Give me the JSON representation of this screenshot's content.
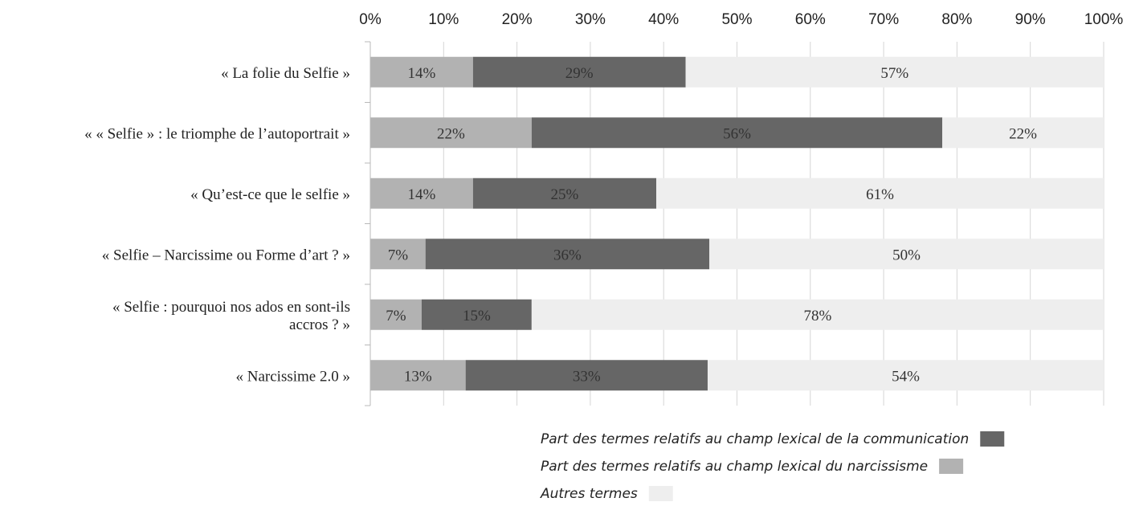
{
  "chart_data": {
    "type": "bar",
    "orientation": "horizontal",
    "stacked": "percent",
    "title": "",
    "xlabel": "",
    "ylabel": "",
    "xlim": [
      0,
      100
    ],
    "x_ticks": [
      "0%",
      "10%",
      "20%",
      "30%",
      "40%",
      "50%",
      "60%",
      "70%",
      "80%",
      "90%",
      "100%"
    ],
    "x_axis_position": "top",
    "grid": true,
    "legend_position": "bottom-right",
    "categories": [
      [
        "« La folie du Selfie »"
      ],
      [
        "« « Selfie » : le triomphe  de l’autoportrait »"
      ],
      [
        "« Qu’est-ce que le selfie »"
      ],
      [
        "« Selfie – Narcissime ou Forme d’art ? »"
      ],
      [
        "« Selfie : pourquoi nos ados  en sont-ils",
        "accros ? »"
      ],
      [
        "« Narcissime 2.0 »"
      ]
    ],
    "series": [
      {
        "name": "Part des termes relatifs au champ lexical du narcissisme",
        "color": "#b2b2b2",
        "values": [
          14,
          22,
          14,
          7,
          7,
          13
        ],
        "labels": [
          "14%",
          "22%",
          "14%",
          "7%",
          "7%",
          "13%"
        ]
      },
      {
        "name": "Part des termes relatifs au champ lexical de la communication",
        "color": "#666666",
        "values": [
          29,
          56,
          25,
          36,
          15,
          33
        ],
        "labels": [
          "29%",
          "56%",
          "25%",
          "36%",
          "15%",
          "33%"
        ]
      },
      {
        "name": "Autres termes",
        "color": "#eeeeee",
        "values": [
          57,
          22,
          61,
          50,
          78,
          54
        ],
        "labels": [
          "57%",
          "22%",
          "61%",
          "50%",
          "78%",
          "54%"
        ]
      }
    ],
    "legend_order": [
      1,
      0,
      2
    ]
  }
}
